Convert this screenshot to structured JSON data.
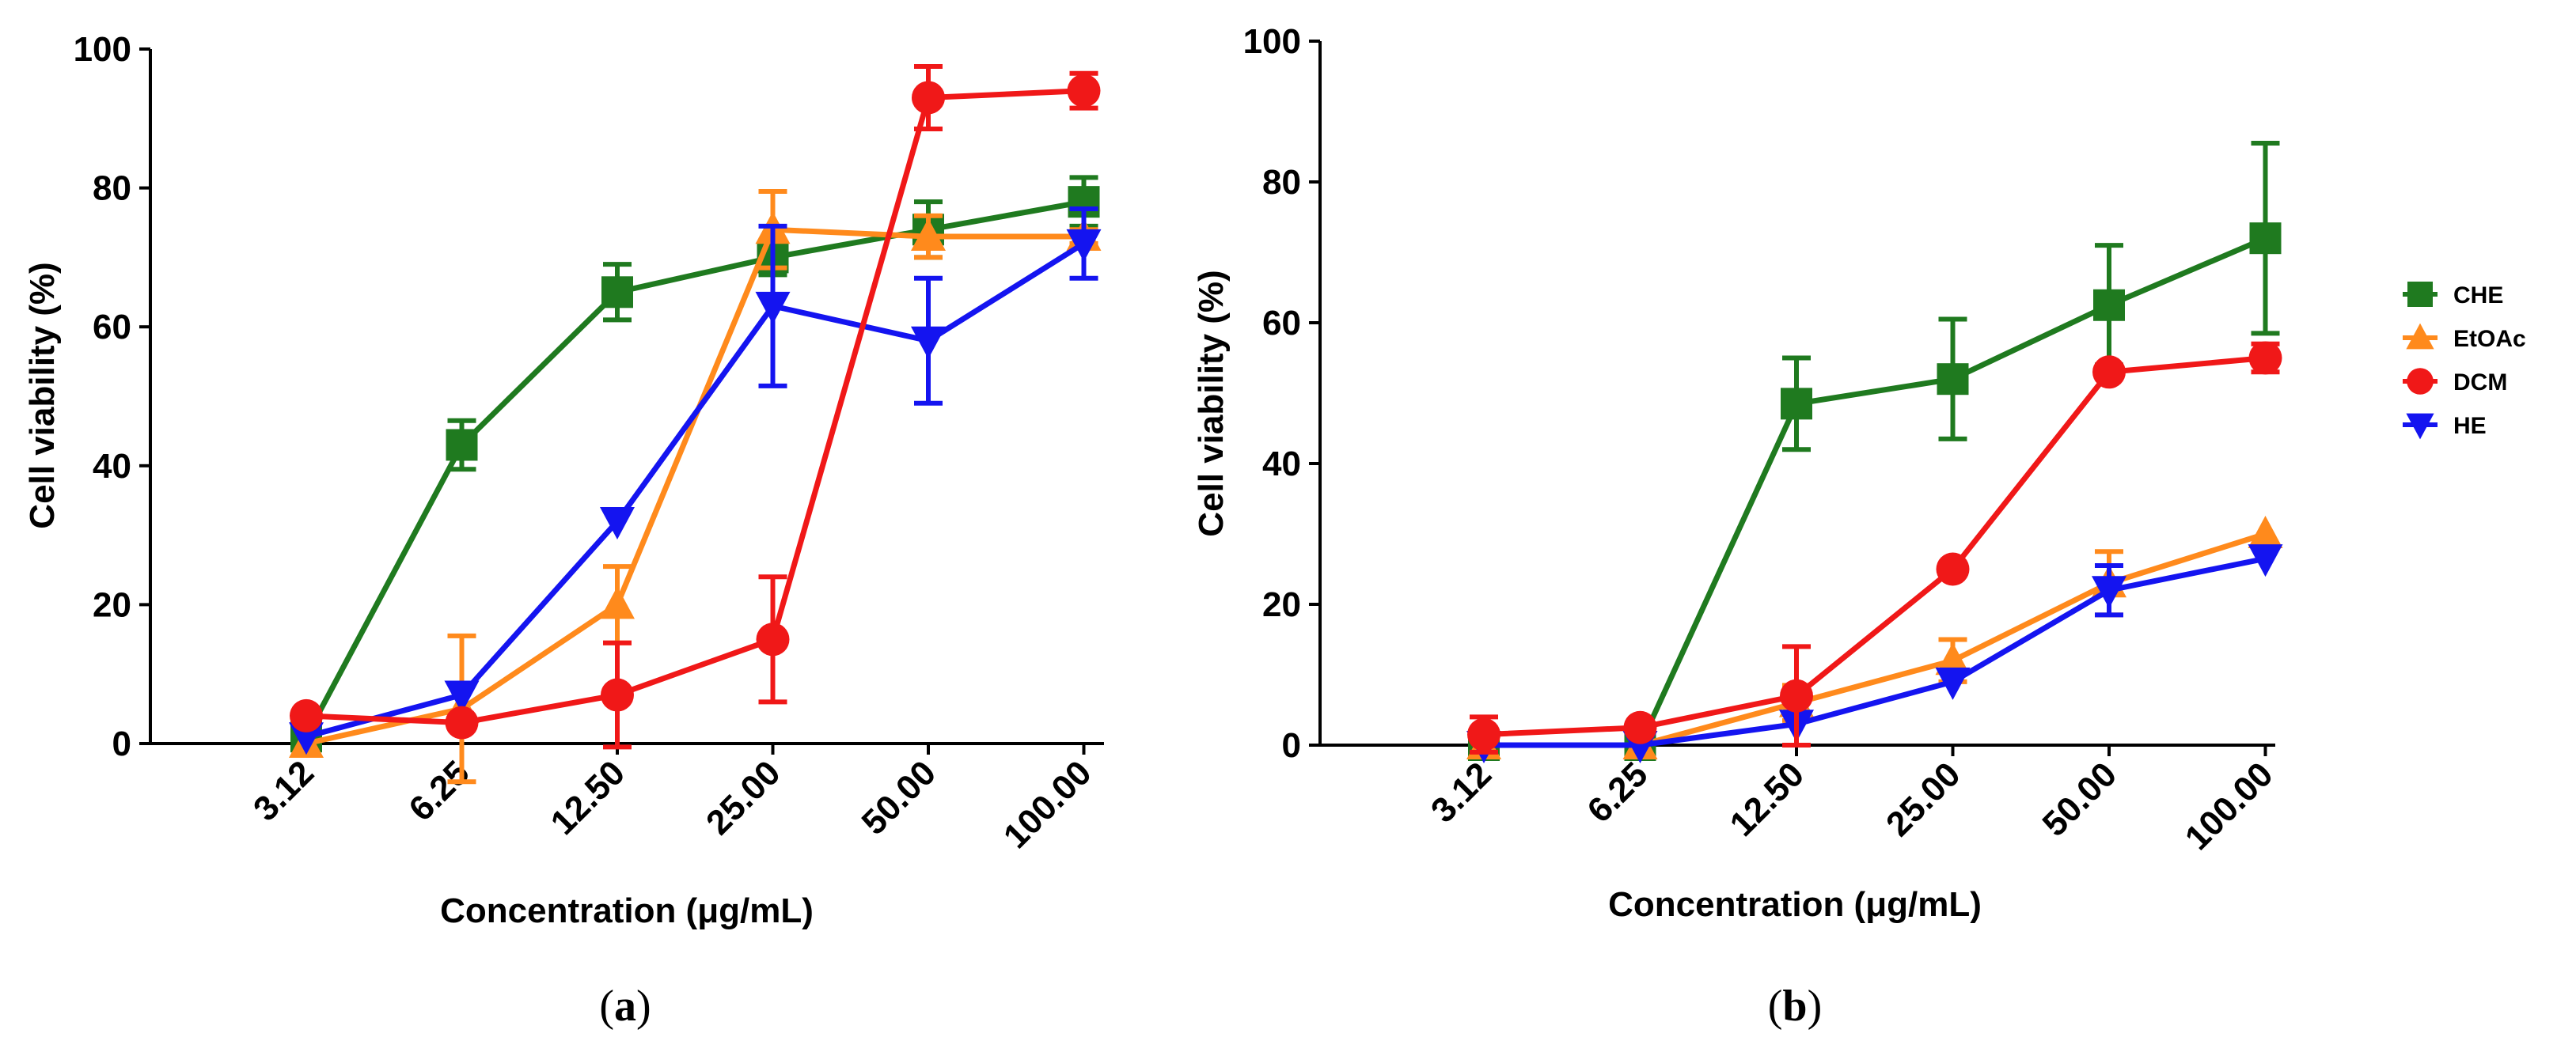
{
  "chart_data": [
    {
      "id": "a",
      "type": "line",
      "panel_label": "a",
      "title": "",
      "xlabel": "Concentration (μg/mL)",
      "ylabel": "Cell viability (%)",
      "ylim": [
        0,
        100
      ],
      "yticks": [
        "0",
        "20",
        "40",
        "60",
        "80",
        "100"
      ],
      "categories": [
        "3.12",
        "6.25",
        "12.50",
        "25.00",
        "50.00",
        "100.00"
      ],
      "legend": false,
      "series": [
        {
          "name": "CHE",
          "marker": "square",
          "values": [
            1,
            43,
            65,
            70,
            74,
            78
          ],
          "errors": [
            0,
            3.5,
            4,
            2.5,
            4,
            3.5
          ]
        },
        {
          "name": "EtOAc",
          "marker": "triangle-up",
          "values": [
            0,
            5,
            20,
            74,
            73,
            73
          ],
          "errors": [
            0,
            10.5,
            5.5,
            5.5,
            3,
            1
          ]
        },
        {
          "name": "DCM",
          "marker": "circle",
          "values": [
            4,
            3,
            7,
            15,
            93,
            94
          ],
          "errors": [
            0,
            0,
            7.5,
            9,
            4.5,
            2.5
          ]
        },
        {
          "name": "HE",
          "marker": "triangle-down",
          "values": [
            1,
            7,
            32,
            63,
            58,
            72
          ],
          "errors": [
            0,
            0,
            0,
            11.5,
            9,
            5
          ]
        }
      ]
    },
    {
      "id": "b",
      "type": "line",
      "panel_label": "b",
      "title": "",
      "xlabel": "Concentration (μg/mL)",
      "ylabel": "Cell viability (%)",
      "ylim": [
        0,
        100
      ],
      "yticks": [
        "0",
        "20",
        "40",
        "60",
        "80",
        "100"
      ],
      "categories": [
        "3.12",
        "6.25",
        "12.50",
        "25.00",
        "50.00",
        "100.00"
      ],
      "legend": true,
      "legend_position": "right",
      "series": [
        {
          "name": "CHE",
          "marker": "square",
          "values": [
            0,
            0,
            48.5,
            52,
            62.5,
            72
          ],
          "errors": [
            0,
            0,
            6.5,
            8.5,
            8.5,
            13.5
          ]
        },
        {
          "name": "EtOAc",
          "marker": "triangle-up",
          "values": [
            0,
            0,
            6,
            12,
            23,
            30
          ],
          "errors": [
            0,
            0,
            2.5,
            3,
            4.5,
            0
          ]
        },
        {
          "name": "DCM",
          "marker": "circle",
          "values": [
            1.5,
            2.5,
            7,
            25,
            53,
            55
          ],
          "errors": [
            2.5,
            0,
            7,
            0,
            0,
            2
          ]
        },
        {
          "name": "HE",
          "marker": "triangle-down",
          "values": [
            0,
            0,
            3,
            9,
            22,
            26.5
          ],
          "errors": [
            0,
            0,
            0,
            0,
            3.5,
            0
          ]
        }
      ]
    }
  ],
  "colors": {
    "CHE": "#1f7a1f",
    "EtOAc": "#ff8a1c",
    "DCM": "#f01818",
    "HE": "#1414f0",
    "axis": "#000000"
  },
  "draw_order": [
    "CHE",
    "EtOAc",
    "HE",
    "DCM"
  ]
}
